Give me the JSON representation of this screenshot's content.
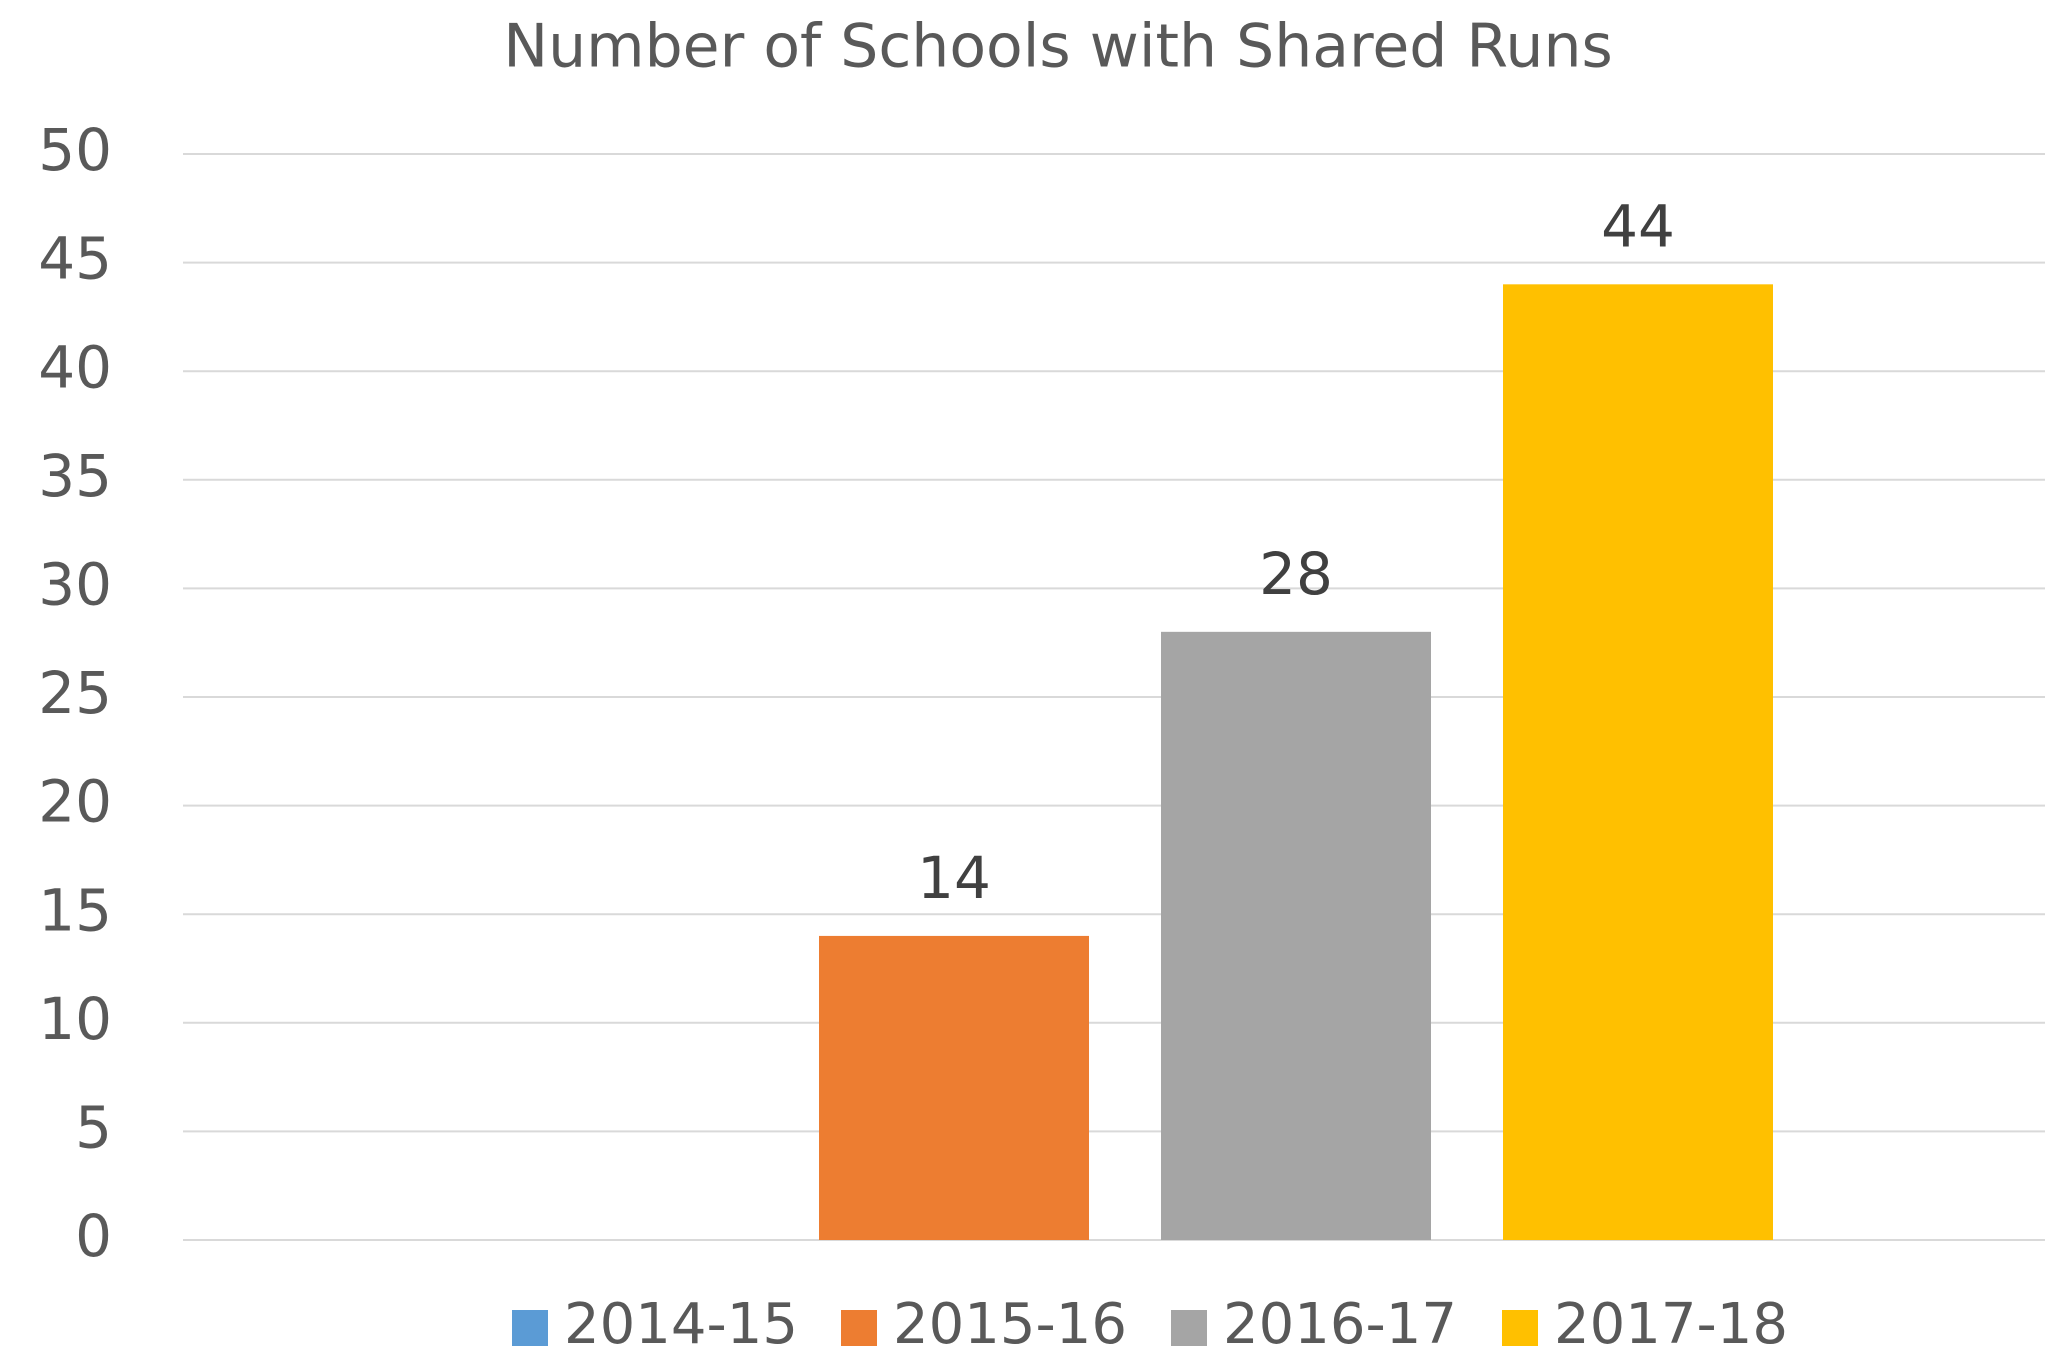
{
  "chart_data": {
    "type": "bar",
    "title": "Number of Schools with Shared Runs",
    "categories": [
      null
    ],
    "series": [
      {
        "name": "2014-15",
        "color": "#5b9bd5",
        "values": [
          null
        ]
      },
      {
        "name": "2015-16",
        "color": "#ed7d31",
        "values": [
          14
        ]
      },
      {
        "name": "2016-17",
        "color": "#a5a5a5",
        "values": [
          28
        ]
      },
      {
        "name": "2017-18",
        "color": "#ffc000",
        "values": [
          44
        ]
      }
    ],
    "ylim": [
      0,
      50
    ],
    "yticks": [
      0,
      5,
      10,
      15,
      20,
      25,
      30,
      35,
      40,
      45,
      50
    ],
    "grid": true,
    "legend": "bottom"
  }
}
